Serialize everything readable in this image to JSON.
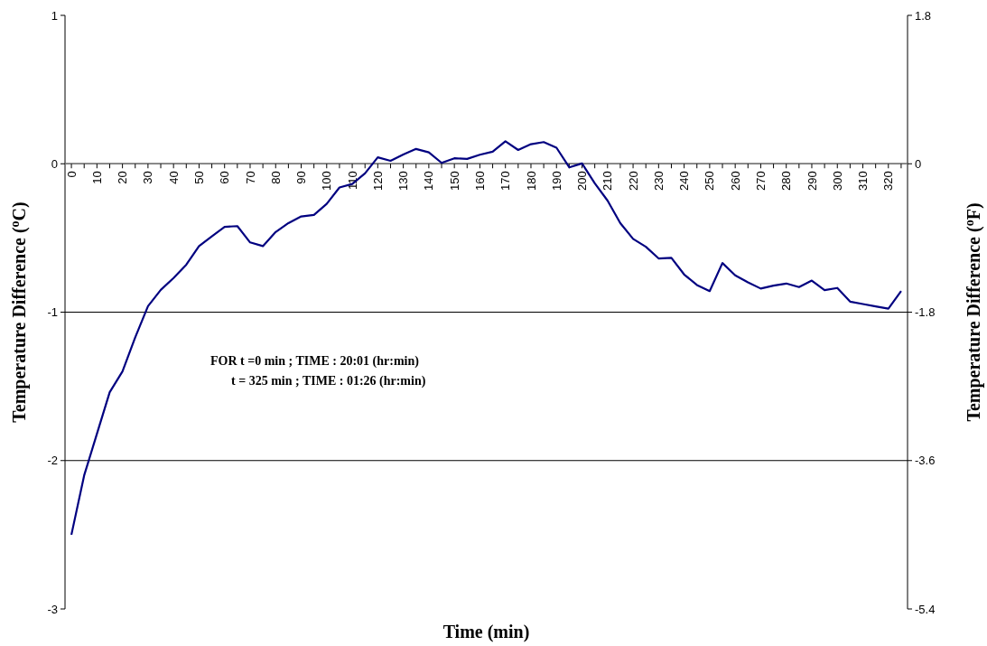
{
  "chart_data": {
    "type": "line",
    "xlabel": "Time (min)",
    "ylabel": "Temperature Difference ($^{o}$C)",
    "y2label": "Temperature Difference ($^{o}$F)",
    "annotations": [
      "FOR t =0 min  ; TIME : 20:01 (hr:min)",
      "t = 325 min ; TIME : 01:26 (hr:min)"
    ],
    "x": [
      0,
      5,
      10,
      15,
      20,
      25,
      30,
      35,
      40,
      45,
      50,
      55,
      60,
      65,
      70,
      75,
      80,
      85,
      90,
      95,
      100,
      105,
      110,
      115,
      120,
      125,
      130,
      135,
      140,
      145,
      150,
      155,
      160,
      165,
      170,
      175,
      180,
      185,
      190,
      195,
      200,
      205,
      210,
      215,
      220,
      225,
      230,
      235,
      240,
      245,
      250,
      255,
      260,
      265,
      270,
      275,
      280,
      285,
      290,
      295,
      300,
      305,
      310,
      315,
      320,
      325
    ],
    "series": [
      {
        "color": "#000080",
        "values": [
          -2.5,
          -2.1,
          -1.82,
          -1.54,
          -1.4,
          -1.17,
          -0.96,
          -0.85,
          -0.77,
          -0.68,
          -0.555,
          -0.49,
          -0.425,
          -0.42,
          -0.53,
          -0.555,
          -0.46,
          -0.4,
          -0.355,
          -0.345,
          -0.27,
          -0.16,
          -0.136,
          -0.065,
          0.043,
          0.02,
          0.063,
          0.1,
          0.077,
          0.006,
          0.037,
          0.033,
          0.061,
          0.081,
          0.152,
          0.093,
          0.132,
          0.146,
          0.108,
          -0.024,
          0.002,
          -0.132,
          -0.248,
          -0.4,
          -0.506,
          -0.559,
          -0.638,
          -0.634,
          -0.746,
          -0.817,
          -0.858,
          -0.669,
          -0.752,
          -0.799,
          -0.841,
          -0.821,
          -0.807,
          -0.831,
          -0.787,
          -0.852,
          -0.837,
          -0.929,
          -0.945,
          -0.961,
          -0.976,
          -0.858
        ]
      }
    ],
    "xlim": [
      -2.5,
      327.5
    ],
    "xticks": [
      0,
      {
        "value": 5,
        "label": null
      },
      10,
      {
        "value": 15,
        "label": null
      },
      20,
      {
        "value": 25,
        "label": null
      },
      30,
      {
        "value": 35,
        "label": null
      },
      40,
      {
        "value": 45,
        "label": null
      },
      50,
      {
        "value": 55,
        "label": null
      },
      60,
      {
        "value": 65,
        "label": null
      },
      70,
      {
        "value": 75,
        "label": null
      },
      80,
      {
        "value": 85,
        "label": null
      },
      90,
      {
        "value": 95,
        "label": null
      },
      100,
      {
        "value": 105,
        "label": null
      },
      110,
      {
        "value": 115,
        "label": null
      },
      120,
      {
        "value": 125,
        "label": null
      },
      130,
      {
        "value": 135,
        "label": null
      },
      140,
      {
        "value": 145,
        "label": null
      },
      150,
      {
        "value": 155,
        "label": null
      },
      160,
      {
        "value": 165,
        "label": null
      },
      170,
      {
        "value": 175,
        "label": null
      },
      180,
      {
        "value": 185,
        "label": null
      },
      190,
      {
        "value": 195,
        "label": null
      },
      200,
      {
        "value": 205,
        "label": null
      },
      210,
      {
        "value": 215,
        "label": null
      },
      220,
      {
        "value": 225,
        "label": null
      },
      230,
      {
        "value": 235,
        "label": null
      },
      240,
      {
        "value": 245,
        "label": null
      },
      250,
      {
        "value": 255,
        "label": null
      },
      260,
      {
        "value": 265,
        "label": null
      },
      270,
      {
        "value": 275,
        "label": null
      },
      280,
      {
        "value": 285,
        "label": null
      },
      290,
      {
        "value": 295,
        "label": null
      },
      300,
      {
        "value": 305,
        "label": null
      },
      310,
      {
        "value": 315,
        "label": null
      },
      320,
      {
        "value": 325,
        "label": null
      }
    ],
    "ylim": [
      -3,
      1
    ],
    "yticks": [
      -3,
      -2,
      -1,
      0,
      1
    ],
    "y2lim": [
      -5.4,
      1.8
    ],
    "y2ticks": [
      -5.4,
      -3.6,
      -1.8,
      0,
      1.8
    ],
    "grid": "y",
    "line_style": "solid"
  }
}
